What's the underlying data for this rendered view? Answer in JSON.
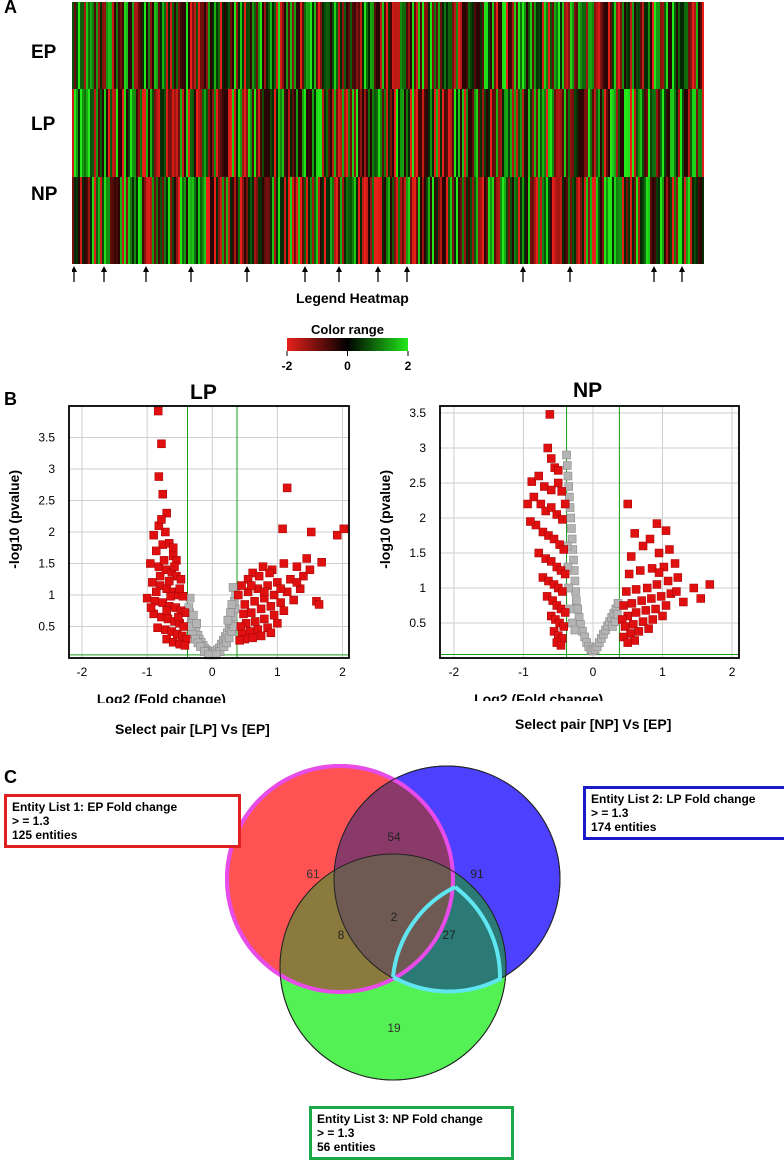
{
  "panels": {
    "a": "A",
    "b": "B",
    "c": "C"
  },
  "chart_data": [
    {
      "type": "heatmap",
      "rows": [
        "EP",
        "LP",
        "NP"
      ],
      "legend_title": "Legend Heatmap",
      "color_range_label": "Color range",
      "scale_ticks": [
        "-2",
        "0",
        "2"
      ],
      "scale_min": -2,
      "scale_max": 2,
      "colors": {
        "low": "#e8201a",
        "mid": "#000000",
        "high": "#22e81a"
      },
      "arrow_count": 13
    },
    {
      "type": "scatter",
      "title": "LP",
      "xlabel": "Log2 (Fold change)",
      "ylabel": "-log10 (pvalue)",
      "xlim": [
        -2.2,
        2.1
      ],
      "ylim": [
        0,
        4.0
      ],
      "xticks": [
        "-2",
        "-1",
        "0",
        "1",
        "2"
      ],
      "yticks": [
        "0.5",
        "1",
        "1.5",
        "2",
        "2.5",
        "3",
        "3.5"
      ],
      "thresholds_x": [
        -0.38,
        0.38
      ],
      "threshold_y": 0.05,
      "grid": true,
      "caption": "Select pair [LP] Vs [EP]",
      "significant_color": "#e01010",
      "nonsignificant_color": "#b4b4b4",
      "significant_points": [
        [
          -0.83,
          3.92
        ],
        [
          -0.78,
          3.4
        ],
        [
          -0.82,
          2.88
        ],
        [
          -0.76,
          2.6
        ],
        [
          -0.7,
          2.3
        ],
        [
          -0.82,
          2.1
        ],
        [
          -0.72,
          2.0
        ],
        [
          -0.9,
          1.95
        ],
        [
          -0.86,
          1.7
        ],
        [
          -0.76,
          1.8
        ],
        [
          -0.66,
          1.82
        ],
        [
          -0.6,
          1.62
        ],
        [
          -0.55,
          1.55
        ],
        [
          -0.95,
          1.5
        ],
        [
          -0.82,
          1.45
        ],
        [
          -0.71,
          1.4
        ],
        [
          -0.62,
          1.36
        ],
        [
          -0.55,
          1.3
        ],
        [
          -0.48,
          1.25
        ],
        [
          -0.92,
          1.2
        ],
        [
          -0.8,
          1.15
        ],
        [
          -0.7,
          1.1
        ],
        [
          -0.6,
          1.05
        ],
        [
          -0.52,
          1.0
        ],
        [
          -0.45,
          0.98
        ],
        [
          -1.0,
          0.95
        ],
        [
          -0.88,
          0.9
        ],
        [
          -0.76,
          0.88
        ],
        [
          -0.66,
          0.82
        ],
        [
          -0.56,
          0.8
        ],
        [
          -0.48,
          0.75
        ],
        [
          -0.42,
          0.72
        ],
        [
          -0.9,
          0.7
        ],
        [
          -0.78,
          0.65
        ],
        [
          -0.68,
          0.62
        ],
        [
          -0.58,
          0.58
        ],
        [
          -0.5,
          0.55
        ],
        [
          -0.44,
          0.5
        ],
        [
          -0.84,
          0.48
        ],
        [
          -0.72,
          0.45
        ],
        [
          -0.62,
          0.42
        ],
        [
          -0.54,
          0.38
        ],
        [
          -0.46,
          0.35
        ],
        [
          -0.4,
          0.3
        ],
        [
          -0.7,
          0.3
        ],
        [
          -0.6,
          0.25
        ],
        [
          -0.5,
          0.22
        ],
        [
          -0.42,
          0.2
        ],
        [
          -0.8,
          1.3
        ],
        [
          -0.66,
          1.22
        ],
        [
          -0.58,
          1.45
        ],
        [
          -0.74,
          1.55
        ],
        [
          -0.5,
          1.1
        ],
        [
          -0.64,
          0.98
        ],
        [
          -0.86,
          1.05
        ],
        [
          -0.94,
          0.8
        ],
        [
          -0.7,
          0.75
        ],
        [
          -0.52,
          0.65
        ],
        [
          -0.78,
          2.2
        ],
        [
          -0.6,
          1.75
        ],
        [
          1.15,
          2.7
        ],
        [
          1.08,
          2.05
        ],
        [
          1.52,
          2.0
        ],
        [
          1.92,
          1.95
        ],
        [
          2.02,
          2.05
        ],
        [
          1.45,
          1.58
        ],
        [
          1.68,
          1.52
        ],
        [
          1.3,
          1.45
        ],
        [
          1.1,
          1.5
        ],
        [
          0.92,
          1.4
        ],
        [
          0.78,
          1.45
        ],
        [
          0.62,
          1.35
        ],
        [
          1.4,
          1.3
        ],
        [
          1.2,
          1.25
        ],
        [
          1.0,
          1.2
        ],
        [
          0.85,
          1.15
        ],
        [
          0.7,
          1.1
        ],
        [
          0.55,
          1.05
        ],
        [
          1.35,
          1.1
        ],
        [
          1.15,
          1.05
        ],
        [
          0.95,
          1.0
        ],
        [
          0.8,
          0.95
        ],
        [
          0.65,
          0.9
        ],
        [
          0.5,
          0.85
        ],
        [
          1.25,
          0.92
        ],
        [
          1.05,
          0.88
        ],
        [
          0.9,
          0.82
        ],
        [
          0.75,
          0.78
        ],
        [
          0.6,
          0.72
        ],
        [
          0.48,
          0.7
        ],
        [
          1.6,
          0.9
        ],
        [
          1.64,
          0.85
        ],
        [
          1.1,
          0.75
        ],
        [
          0.95,
          0.68
        ],
        [
          0.8,
          0.62
        ],
        [
          0.66,
          0.58
        ],
        [
          0.52,
          0.55
        ],
        [
          0.44,
          0.5
        ],
        [
          1.0,
          0.55
        ],
        [
          0.85,
          0.48
        ],
        [
          0.7,
          0.45
        ],
        [
          0.58,
          0.42
        ],
        [
          0.46,
          0.38
        ],
        [
          0.9,
          0.4
        ],
        [
          0.75,
          0.35
        ],
        [
          0.62,
          0.32
        ],
        [
          0.5,
          0.3
        ],
        [
          0.42,
          0.28
        ],
        [
          0.55,
          1.25
        ],
        [
          0.72,
          1.3
        ],
        [
          0.88,
          1.35
        ],
        [
          1.3,
          1.2
        ],
        [
          1.5,
          1.4
        ],
        [
          0.45,
          1.15
        ],
        [
          0.4,
          1.0
        ],
        [
          0.6,
          1.15
        ],
        [
          0.8,
          1.05
        ],
        [
          1.05,
          1.1
        ]
      ],
      "nonsignificant_points": [
        [
          -0.35,
          0.72
        ],
        [
          -0.32,
          0.62
        ],
        [
          -0.3,
          0.55
        ],
        [
          -0.28,
          0.48
        ],
        [
          -0.25,
          0.42
        ],
        [
          -0.22,
          0.36
        ],
        [
          -0.2,
          0.3
        ],
        [
          -0.17,
          0.25
        ],
        [
          -0.14,
          0.2
        ],
        [
          -0.11,
          0.15
        ],
        [
          -0.08,
          0.12
        ],
        [
          -0.05,
          0.1
        ],
        [
          -0.02,
          0.08
        ],
        [
          0.02,
          0.08
        ],
        [
          0.05,
          0.1
        ],
        [
          0.08,
          0.13
        ],
        [
          0.11,
          0.16
        ],
        [
          0.14,
          0.22
        ],
        [
          0.17,
          0.28
        ],
        [
          0.2,
          0.34
        ],
        [
          0.23,
          0.4
        ],
        [
          0.26,
          0.48
        ],
        [
          0.29,
          0.56
        ],
        [
          0.32,
          0.66
        ],
        [
          0.35,
          0.78
        ],
        [
          0.34,
          0.9
        ],
        [
          -0.36,
          0.8
        ],
        [
          -0.34,
          0.95
        ],
        [
          -0.3,
          0.38
        ],
        [
          -0.26,
          0.3
        ],
        [
          -0.22,
          0.24
        ],
        [
          -0.18,
          0.18
        ],
        [
          -0.12,
          0.1
        ],
        [
          0.12,
          0.1
        ],
        [
          0.18,
          0.18
        ],
        [
          0.22,
          0.24
        ],
        [
          0.26,
          0.32
        ],
        [
          0.3,
          0.42
        ],
        [
          0.33,
          0.5
        ],
        [
          0.36,
          1.02
        ],
        [
          0.32,
          1.12
        ],
        [
          0.3,
          0.85
        ],
        [
          -0.33,
          0.5
        ],
        [
          -0.29,
          0.68
        ],
        [
          0.28,
          0.72
        ],
        [
          0.24,
          0.6
        ],
        [
          -0.24,
          0.55
        ],
        [
          0.0,
          0.05
        ],
        [
          -0.06,
          0.05
        ],
        [
          0.06,
          0.05
        ]
      ]
    },
    {
      "type": "scatter",
      "title": "NP",
      "xlabel": "Log2 (Fold change)",
      "ylabel": "-log10 (pvalue)",
      "xlim": [
        -2.2,
        2.1
      ],
      "ylim": [
        0,
        3.6
      ],
      "xticks": [
        "-2",
        "-1",
        "0",
        "1",
        "2"
      ],
      "yticks": [
        "0.5",
        "1",
        "1.5",
        "2",
        "2.5",
        "3",
        "3.5"
      ],
      "thresholds_x": [
        -0.38,
        0.38
      ],
      "threshold_y": 0.05,
      "grid": true,
      "caption": "Select pair [NP] Vs [EP]",
      "significant_color": "#e01010",
      "nonsignificant_color": "#b4b4b4",
      "significant_points": [
        [
          -0.62,
          3.48
        ],
        [
          -0.65,
          3.0
        ],
        [
          -0.6,
          2.85
        ],
        [
          -0.55,
          2.72
        ],
        [
          -0.5,
          2.68
        ],
        [
          -0.88,
          2.52
        ],
        [
          -0.78,
          2.6
        ],
        [
          -0.7,
          2.45
        ],
        [
          -0.6,
          2.4
        ],
        [
          -0.5,
          2.5
        ],
        [
          -0.45,
          2.38
        ],
        [
          -0.85,
          2.3
        ],
        [
          -0.75,
          2.2
        ],
        [
          -0.68,
          2.1
        ],
        [
          -0.6,
          2.15
        ],
        [
          -0.52,
          2.05
        ],
        [
          -0.44,
          1.98
        ],
        [
          -0.82,
          1.9
        ],
        [
          -0.72,
          1.8
        ],
        [
          -0.64,
          1.75
        ],
        [
          -0.56,
          1.7
        ],
        [
          -0.48,
          1.62
        ],
        [
          -0.42,
          1.55
        ],
        [
          -0.78,
          1.5
        ],
        [
          -0.68,
          1.42
        ],
        [
          -0.6,
          1.38
        ],
        [
          -0.52,
          1.3
        ],
        [
          -0.46,
          1.25
        ],
        [
          -0.4,
          1.2
        ],
        [
          -0.72,
          1.15
        ],
        [
          -0.64,
          1.1
        ],
        [
          -0.56,
          1.05
        ],
        [
          -0.5,
          1.0
        ],
        [
          -0.44,
          0.95
        ],
        [
          -0.66,
          0.88
        ],
        [
          -0.58,
          0.82
        ],
        [
          -0.52,
          0.75
        ],
        [
          -0.46,
          0.7
        ],
        [
          -0.4,
          0.65
        ],
        [
          -0.6,
          0.6
        ],
        [
          -0.54,
          0.55
        ],
        [
          -0.48,
          0.5
        ],
        [
          -0.42,
          0.45
        ],
        [
          -0.56,
          0.38
        ],
        [
          -0.5,
          0.32
        ],
        [
          -0.44,
          0.28
        ],
        [
          -0.52,
          0.22
        ],
        [
          -0.46,
          0.18
        ],
        [
          -0.94,
          2.2
        ],
        [
          -0.9,
          1.95
        ],
        [
          -0.4,
          2.2
        ],
        [
          0.5,
          2.2
        ],
        [
          0.92,
          1.92
        ],
        [
          1.05,
          1.82
        ],
        [
          0.6,
          1.78
        ],
        [
          0.82,
          1.7
        ],
        [
          0.72,
          1.6
        ],
        [
          1.1,
          1.55
        ],
        [
          0.95,
          1.5
        ],
        [
          0.55,
          1.45
        ],
        [
          1.18,
          1.35
        ],
        [
          1.02,
          1.3
        ],
        [
          0.85,
          1.28
        ],
        [
          0.68,
          1.25
        ],
        [
          0.52,
          1.2
        ],
        [
          1.22,
          1.15
        ],
        [
          1.68,
          1.05
        ],
        [
          1.45,
          1.0
        ],
        [
          1.08,
          1.1
        ],
        [
          0.92,
          1.05
        ],
        [
          0.78,
          1.0
        ],
        [
          0.62,
          0.98
        ],
        [
          0.48,
          0.95
        ],
        [
          1.12,
          0.92
        ],
        [
          0.98,
          0.88
        ],
        [
          0.84,
          0.85
        ],
        [
          0.7,
          0.82
        ],
        [
          0.56,
          0.78
        ],
        [
          0.44,
          0.75
        ],
        [
          1.3,
          0.8
        ],
        [
          1.55,
          0.85
        ],
        [
          1.05,
          0.75
        ],
        [
          0.9,
          0.7
        ],
        [
          0.76,
          0.68
        ],
        [
          0.62,
          0.65
        ],
        [
          0.5,
          0.6
        ],
        [
          0.42,
          0.55
        ],
        [
          1.0,
          0.6
        ],
        [
          0.86,
          0.55
        ],
        [
          0.72,
          0.52
        ],
        [
          0.58,
          0.48
        ],
        [
          0.46,
          0.45
        ],
        [
          0.8,
          0.42
        ],
        [
          0.66,
          0.38
        ],
        [
          0.54,
          0.35
        ],
        [
          0.44,
          0.3
        ],
        [
          0.6,
          0.25
        ],
        [
          0.5,
          0.22
        ],
        [
          1.2,
          0.95
        ],
        [
          0.95,
          1.22
        ]
      ],
      "nonsignificant_points": [
        [
          -0.36,
          2.6
        ],
        [
          -0.35,
          2.45
        ],
        [
          -0.34,
          2.3
        ],
        [
          -0.33,
          2.15
        ],
        [
          -0.32,
          2.0
        ],
        [
          -0.31,
          1.85
        ],
        [
          -0.3,
          1.7
        ],
        [
          -0.29,
          1.55
        ],
        [
          -0.28,
          1.4
        ],
        [
          -0.27,
          1.25
        ],
        [
          -0.26,
          1.1
        ],
        [
          -0.25,
          0.95
        ],
        [
          -0.24,
          0.82
        ],
        [
          -0.22,
          0.7
        ],
        [
          -0.2,
          0.58
        ],
        [
          -0.18,
          0.48
        ],
        [
          -0.15,
          0.38
        ],
        [
          -0.12,
          0.3
        ],
        [
          -0.09,
          0.22
        ],
        [
          -0.06,
          0.16
        ],
        [
          -0.03,
          0.12
        ],
        [
          0.0,
          0.1
        ],
        [
          0.03,
          0.12
        ],
        [
          0.06,
          0.16
        ],
        [
          0.09,
          0.22
        ],
        [
          0.12,
          0.28
        ],
        [
          0.15,
          0.34
        ],
        [
          0.18,
          0.4
        ],
        [
          0.21,
          0.46
        ],
        [
          0.24,
          0.52
        ],
        [
          0.27,
          0.58
        ],
        [
          0.3,
          0.64
        ],
        [
          0.33,
          0.7
        ],
        [
          0.36,
          0.78
        ],
        [
          -0.37,
          1.6
        ],
        [
          -0.36,
          1.3
        ],
        [
          -0.35,
          1.0
        ],
        [
          -0.33,
          0.7
        ],
        [
          -0.3,
          0.5
        ],
        [
          -0.26,
          0.4
        ],
        [
          0.28,
          0.45
        ],
        [
          0.32,
          0.52
        ],
        [
          0.35,
          0.62
        ],
        [
          -0.38,
          2.9
        ],
        [
          -0.37,
          2.75
        ]
      ]
    },
    {
      "type": "venn",
      "sets": [
        {
          "label": "Entity List 1: EP Fold change",
          "criterion": "> = 1.3",
          "count": "125 entities",
          "color": "#ff4444",
          "border": "#e03030"
        },
        {
          "label": "Entity List 2: LP Fold change",
          "criterion": "> = 1.3",
          "count": "174 entities",
          "color": "#4a3cff",
          "border": "#2a1cb0"
        },
        {
          "label": "Entity List 3: NP Fold change",
          "criterion": "> = 1.3",
          "count": "56 entities",
          "color": "#44ff44",
          "border": "#17a84a"
        }
      ],
      "regions": {
        "ep_only": "61",
        "lp_only": "91",
        "np_only": "19",
        "ep_lp": "54",
        "ep_np": "8",
        "lp_np": "27",
        "all": "2"
      }
    }
  ]
}
